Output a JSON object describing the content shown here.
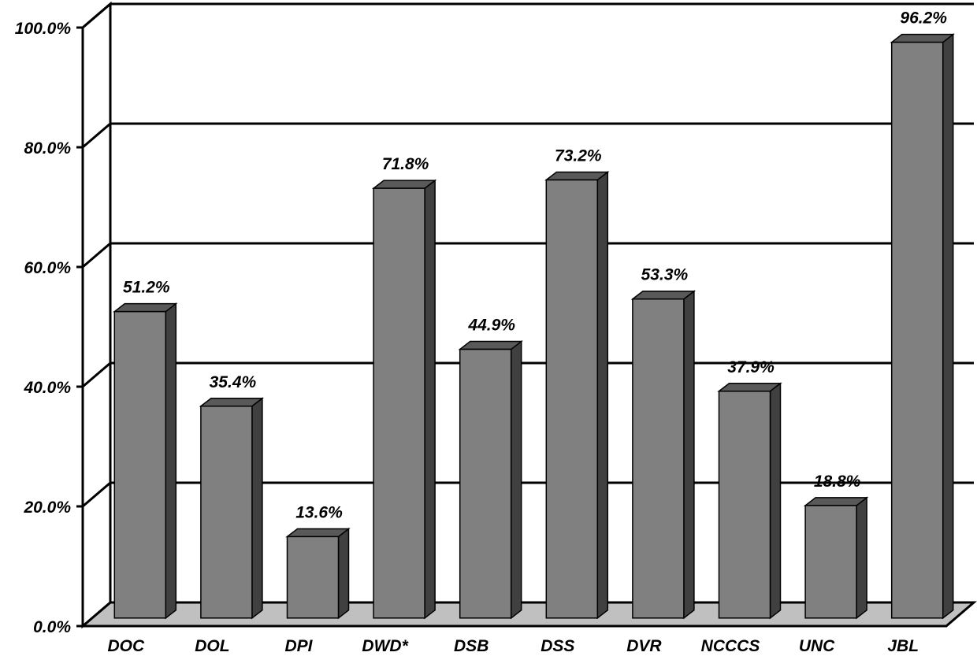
{
  "chart_data": {
    "type": "bar",
    "style": "3d-columns",
    "categories": [
      "DOC",
      "DOL",
      "DPI",
      "DWD*",
      "DSB",
      "DSS",
      "DVR",
      "NCCCS",
      "UNC",
      "JBL"
    ],
    "values": [
      51.2,
      35.4,
      13.6,
      71.8,
      44.9,
      73.2,
      53.3,
      37.9,
      18.8,
      96.2
    ],
    "data_labels": [
      "51.2%",
      "35.4%",
      "13.6%",
      "71.8%",
      "44.9%",
      "73.2%",
      "53.3%",
      "37.9%",
      "18.8%",
      "96.2%"
    ],
    "y_ticks": [
      "0.0%",
      "20.0%",
      "40.0%",
      "60.0%",
      "80.0%",
      "100.0%"
    ],
    "ylim": [
      0,
      100
    ],
    "grid": true,
    "legend": "none",
    "colors": {
      "bar_front": "#808080",
      "bar_top": "#595959",
      "bar_side": "#404040",
      "floor": "#c0c0c0",
      "grid": "#000000"
    }
  }
}
